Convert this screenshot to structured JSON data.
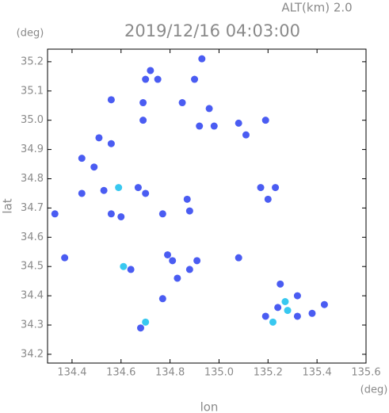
{
  "chart_data": {
    "type": "scatter",
    "title": "2019/12/16 04:03:00",
    "subtitle": "ALT(km) 2.0",
    "y_unit": "(deg)",
    "x_unit": "(deg)",
    "xlabel": "lon",
    "ylabel": "lat",
    "xlim": [
      134.3,
      135.6
    ],
    "ylim": [
      34.17,
      35.243
    ],
    "xticks": [
      134.4,
      134.6,
      134.8,
      {
        "value": 135.0,
        "label": "135.0"
      },
      135.2,
      135.4,
      135.6
    ],
    "yticks": [
      34.2,
      34.3,
      34.4,
      34.5,
      34.6,
      34.7,
      34.8,
      34.9,
      {
        "value": 35.0,
        "label": "35.0"
      },
      35.1,
      35.2
    ],
    "x": [
      134.93,
      134.7,
      134.72,
      134.75,
      134.9,
      134.56,
      134.85,
      134.69,
      134.96,
      135.08,
      135.19,
      135.11,
      134.92,
      134.98,
      134.69,
      134.51,
      134.56,
      134.44,
      134.49,
      134.44,
      134.53,
      134.59,
      134.67,
      134.7,
      135.17,
      135.23,
      135.2,
      134.56,
      134.6,
      134.33,
      134.87,
      134.88,
      134.77,
      134.37,
      134.79,
      134.81,
      134.88,
      134.91,
      134.83,
      134.64,
      134.61,
      135.08,
      134.77,
      134.7,
      134.68,
      135.19,
      135.22,
      135.27,
      135.25,
      135.32,
      135.32,
      135.38,
      135.43,
      135.28,
      135.24
    ],
    "values": [
      35.21,
      35.14,
      35.17,
      35.14,
      35.14,
      35.07,
      35.06,
      35.06,
      35.04,
      34.99,
      35.0,
      34.95,
      34.98,
      34.98,
      35.0,
      34.94,
      34.92,
      34.87,
      34.84,
      34.75,
      34.76,
      34.77,
      34.77,
      34.75,
      34.77,
      34.77,
      34.73,
      34.68,
      34.67,
      34.68,
      34.73,
      34.69,
      34.68,
      34.53,
      34.54,
      34.52,
      34.49,
      34.52,
      34.46,
      34.49,
      34.5,
      34.53,
      34.39,
      34.31,
      34.29,
      34.33,
      34.31,
      34.38,
      34.44,
      34.4,
      34.33,
      34.34,
      34.37,
      34.35,
      34.36
    ],
    "color": "#4a5cf2",
    "highlight_color": "#38c8f0",
    "highlighted": [
      21,
      40,
      43,
      46,
      47,
      53
    ]
  }
}
